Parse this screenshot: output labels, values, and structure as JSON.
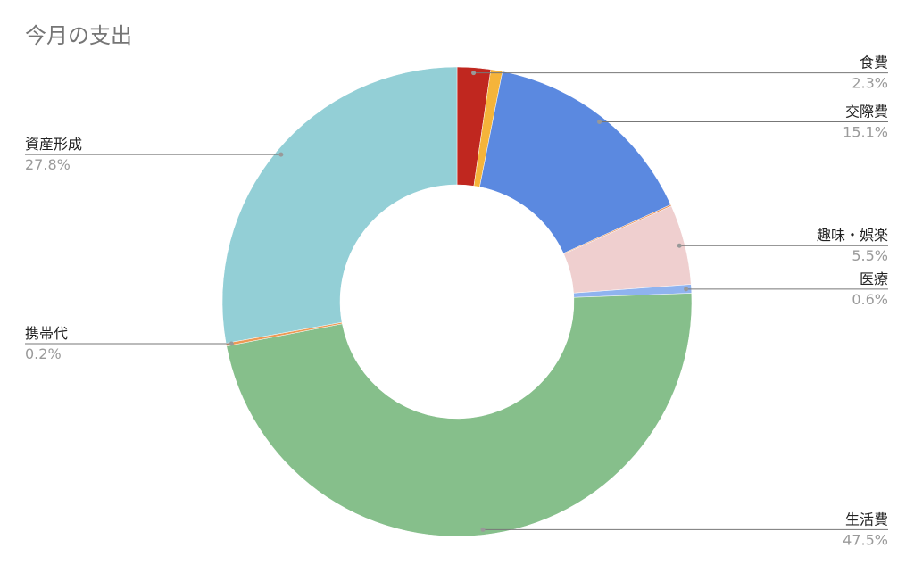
{
  "chart_data": {
    "type": "donut",
    "title": "今月の支出",
    "categories": [
      "食費",
      null,
      "交際費",
      null,
      "趣味・娯楽",
      "医療",
      "生活費",
      "携帯代",
      "資産形成"
    ],
    "values": [
      2.3,
      0.8,
      15.1,
      0.1,
      5.5,
      0.6,
      47.5,
      0.2,
      27.8
    ],
    "value_labels": [
      "2.3%",
      null,
      "15.1%",
      null,
      "5.5%",
      "0.6%",
      "47.5%",
      "0.2%",
      "27.8%"
    ],
    "colors": [
      "#c0271f",
      "#f5b43a",
      "#5b89e0",
      "#e8935a",
      "#efcfcf",
      "#8fb3ef",
      "#86bf8b",
      "#ee9a55",
      "#93cfd6"
    ]
  }
}
